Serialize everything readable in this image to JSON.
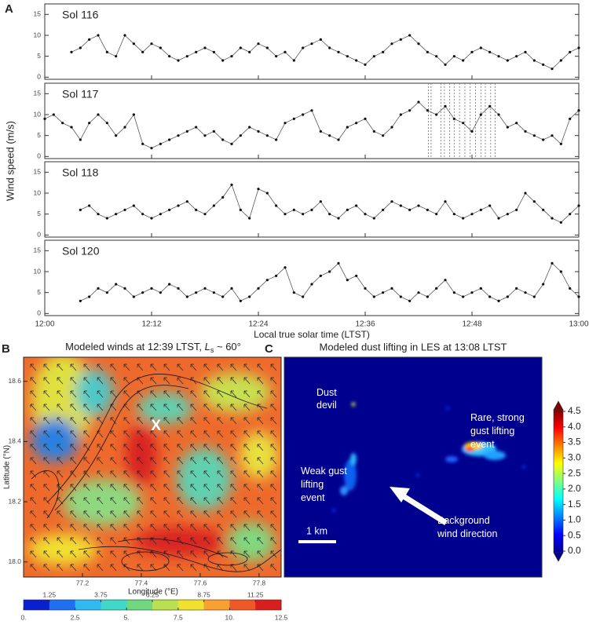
{
  "chart_data": [
    {
      "type": "scatter-panels",
      "letter": "A",
      "y_label": "Wind speed (m/s)",
      "x_label": "Local true solar time (LTST)",
      "color": "#111111",
      "xlim": [
        0,
        60
      ],
      "xticks": [
        {
          "value": 0,
          "label": "12:00"
        },
        {
          "value": 12,
          "label": "12:12"
        },
        {
          "value": 24,
          "label": "12:24"
        },
        {
          "value": 36,
          "label": "12:36"
        },
        {
          "value": 48,
          "label": "12:48"
        },
        {
          "value": 60,
          "label": "13:00"
        }
      ],
      "ylim": [
        -0.5,
        17.5
      ],
      "yticks": [
        0,
        5,
        10,
        15
      ],
      "panels": [
        {
          "title": "Sol 116",
          "x": [
            3,
            4,
            5,
            6,
            7,
            8,
            9,
            10,
            11,
            12,
            13,
            14,
            15,
            16,
            17,
            18,
            19,
            20,
            21,
            22,
            23,
            24,
            25,
            26,
            27,
            28,
            29,
            30,
            31,
            32,
            33,
            34,
            35,
            36,
            37,
            38,
            39,
            40,
            41,
            42,
            43,
            44,
            45,
            46,
            47,
            48,
            49,
            50,
            51,
            52,
            53,
            54,
            55,
            56,
            57,
            58,
            59,
            60
          ],
          "values": [
            6,
            7,
            9,
            10,
            6,
            5,
            10,
            8,
            6,
            8,
            7,
            5,
            4,
            5,
            6,
            7,
            6,
            4,
            5,
            7,
            6,
            8,
            7,
            5,
            6,
            4,
            7,
            8,
            9,
            7,
            6,
            5,
            4,
            3,
            5,
            6,
            8,
            9,
            10,
            8,
            6,
            5,
            3,
            5,
            4,
            6,
            7,
            6,
            5,
            4,
            5,
            6,
            4,
            3,
            2,
            4,
            6,
            7
          ]
        },
        {
          "title": "Sol 117",
          "x": [
            0,
            1,
            2,
            3,
            4,
            5,
            6,
            7,
            8,
            9,
            10,
            11,
            12,
            13,
            14,
            15,
            16,
            17,
            18,
            19,
            20,
            21,
            22,
            23,
            24,
            25,
            26,
            27,
            28,
            29,
            30,
            31,
            32,
            33,
            34,
            35,
            36,
            37,
            38,
            39,
            40,
            41,
            42,
            43,
            44,
            45,
            46,
            47,
            48,
            49,
            50,
            51,
            52,
            53,
            54,
            55,
            56,
            57,
            58,
            59,
            60
          ],
          "values": [
            9,
            10,
            8,
            7,
            4,
            8,
            10,
            8,
            5,
            7,
            10,
            3,
            2,
            3,
            4,
            5,
            6,
            7,
            5,
            6,
            4,
            3,
            5,
            7,
            6,
            5,
            4,
            8,
            9,
            10,
            11,
            6,
            5,
            4,
            7,
            8,
            9,
            6,
            5,
            7,
            10,
            11,
            13,
            11,
            10,
            12,
            9,
            8,
            6,
            10,
            12,
            10,
            7,
            8,
            6,
            5,
            4,
            5,
            3,
            9,
            11
          ],
          "markers_x": [
            43.1,
            43.4,
            44.5,
            44.9,
            45.5,
            46.0,
            46.6,
            47.2,
            47.8,
            48.4,
            49.0,
            49.5,
            50.1,
            50.6
          ]
        },
        {
          "title": "Sol 118",
          "x": [
            4,
            5,
            6,
            7,
            8,
            9,
            10,
            11,
            12,
            13,
            14,
            15,
            16,
            17,
            18,
            19,
            20,
            21,
            22,
            23,
            24,
            25,
            26,
            27,
            28,
            29,
            30,
            31,
            32,
            33,
            34,
            35,
            36,
            37,
            38,
            39,
            40,
            41,
            42,
            43,
            44,
            45,
            46,
            47,
            48,
            49,
            50,
            51,
            52,
            53,
            54,
            55,
            56,
            57,
            58,
            59,
            60
          ],
          "values": [
            6,
            7,
            5,
            4,
            5,
            6,
            7,
            5,
            4,
            5,
            6,
            7,
            8,
            6,
            5,
            7,
            9,
            12,
            6,
            4,
            11,
            10,
            7,
            5,
            6,
            5,
            6,
            8,
            5,
            4,
            6,
            7,
            5,
            4,
            6,
            8,
            7,
            6,
            7,
            6,
            5,
            8,
            5,
            4,
            5,
            6,
            7,
            4,
            5,
            6,
            10,
            8,
            6,
            4,
            3,
            5,
            7
          ]
        },
        {
          "title": "Sol 120",
          "x": [
            4,
            5,
            6,
            7,
            8,
            9,
            10,
            11,
            12,
            13,
            14,
            15,
            16,
            17,
            18,
            19,
            20,
            21,
            22,
            23,
            24,
            25,
            26,
            27,
            28,
            29,
            30,
            31,
            32,
            33,
            34,
            35,
            36,
            37,
            38,
            39,
            40,
            41,
            42,
            43,
            44,
            45,
            46,
            47,
            48,
            49,
            50,
            51,
            52,
            53,
            54,
            55,
            56,
            57,
            58,
            59,
            60
          ],
          "values": [
            3,
            4,
            6,
            5,
            7,
            6,
            4,
            5,
            6,
            5,
            7,
            6,
            4,
            5,
            6,
            5,
            4,
            6,
            3,
            4,
            6,
            8,
            9,
            11,
            5,
            4,
            7,
            9,
            10,
            12,
            8,
            9,
            6,
            4,
            5,
            6,
            4,
            3,
            5,
            4,
            6,
            8,
            5,
            4,
            5,
            6,
            4,
            3,
            4,
            6,
            5,
            4,
            7,
            12,
            10,
            6,
            4
          ]
        }
      ]
    },
    {
      "type": "map",
      "letter": "B",
      "title_parts": [
        "Modeled winds at 12:39 LTST, ",
        "L",
        "s",
        " ~ 60°"
      ],
      "x_label": "Longitude (°E)",
      "y_label": "Latitude (°N)",
      "xlim": [
        77.0,
        77.875
      ],
      "ylim": [
        17.95,
        18.68
      ],
      "xticks": [
        77.2,
        77.4,
        77.6,
        77.8
      ],
      "yticks": [
        {
          "value": 18.0,
          "label": "18.0"
        },
        18.2,
        18.4,
        18.6
      ],
      "annotations": [
        {
          "text": "X",
          "x": 77.45,
          "y": 18.45
        }
      ],
      "colorbar": {
        "clim": [
          0,
          12.5
        ],
        "ticks_top": [
          1.25,
          3.75,
          6.25,
          8.75,
          11.25
        ],
        "ticks_bottom": [
          {
            "value": 0,
            "label": "0."
          },
          2.5,
          {
            "value": 5,
            "label": "5."
          },
          7.5,
          {
            "value": 10,
            "label": "10."
          },
          12.5
        ],
        "colors": [
          "#0a1fd0",
          "#1e70f0",
          "#30b8f0",
          "#40d8c8",
          "#70d880",
          "#b8e050",
          "#f0e030",
          "#f8a030",
          "#f05828",
          "#d81e1e"
        ]
      }
    },
    {
      "type": "image",
      "letter": "C",
      "title": "Modeled dust lifting in LES at 13:08 LTST",
      "annotations": [
        {
          "lines": [
            "Dust",
            "devil"
          ]
        },
        {
          "lines": [
            "Rare, strong",
            "gust lifting",
            "event"
          ]
        },
        {
          "lines": [
            "Weak gust",
            "lifting",
            "event"
          ]
        },
        {
          "lines": [
            "Background",
            "wind direction"
          ]
        }
      ],
      "scale_bar": "1 km",
      "colorbar": {
        "clim": [
          0,
          4.5
        ],
        "ticks": [
          {
            "value": 0,
            "label": "0.0"
          },
          0.5,
          {
            "value": 1,
            "label": "1.0"
          },
          1.5,
          {
            "value": 2,
            "label": "2.0"
          },
          2.5,
          {
            "value": 3,
            "label": "3.0"
          },
          3.5,
          {
            "value": 4,
            "label": "4.0"
          },
          4.5
        ],
        "colors": [
          "#00008f",
          "#0000ff",
          "#0080ff",
          "#00ffff",
          "#80ff80",
          "#ffff00",
          "#ff8000",
          "#ff0000",
          "#800000"
        ]
      }
    }
  ]
}
